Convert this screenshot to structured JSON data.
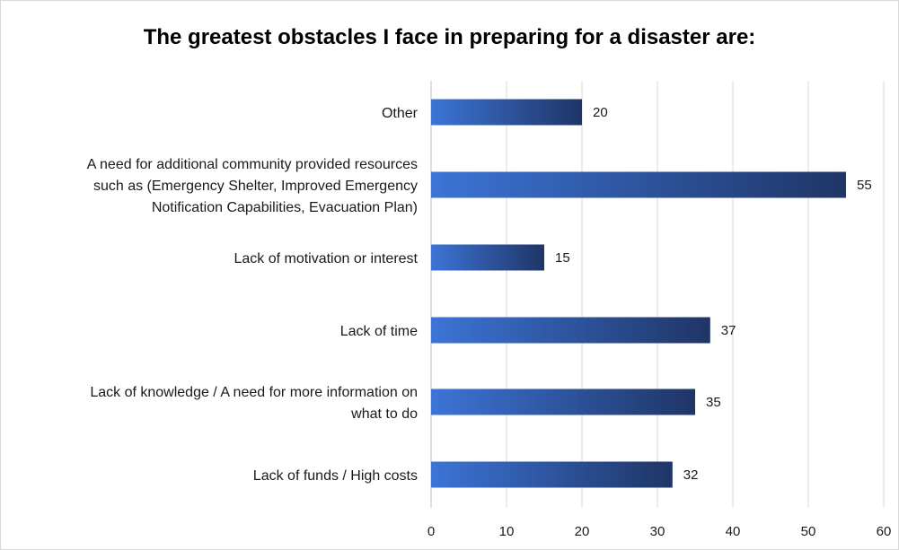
{
  "chart_data": {
    "type": "bar",
    "orientation": "horizontal",
    "title": "The greatest obstacles I face in preparing for a disaster are:",
    "xlabel": "",
    "ylabel": "",
    "categories": [
      "Other",
      "A need for additional community provided resources such as (Emergency Shelter, Improved Emergency Notification Capabilities, Evacuation Plan)",
      "Lack of motivation or interest",
      "Lack of time",
      "Lack of knowledge / A need for more information on what to do",
      "Lack of funds / High costs"
    ],
    "category_lines": [
      [
        "Other"
      ],
      [
        "A need for additional community provided resources",
        "such as (Emergency Shelter, Improved Emergency",
        "Notification Capabilities, Evacuation Plan)"
      ],
      [
        "Lack of motivation or interest"
      ],
      [
        "Lack of time"
      ],
      [
        "Lack of knowledge / A need for more information on",
        "what to do"
      ],
      [
        "Lack of funds / High costs"
      ]
    ],
    "values": [
      20,
      55,
      15,
      37,
      35,
      32
    ],
    "xlim": [
      0,
      60
    ],
    "xticks": [
      0,
      10,
      20,
      30,
      40,
      50,
      60
    ],
    "grid": "vertical",
    "legend": "none",
    "data_labels": true,
    "colors": {
      "bar_start": "#3c74d6",
      "bar_end": "#1f3566",
      "grid": "#d9d9d9",
      "axis": "#bfbfbf"
    }
  }
}
